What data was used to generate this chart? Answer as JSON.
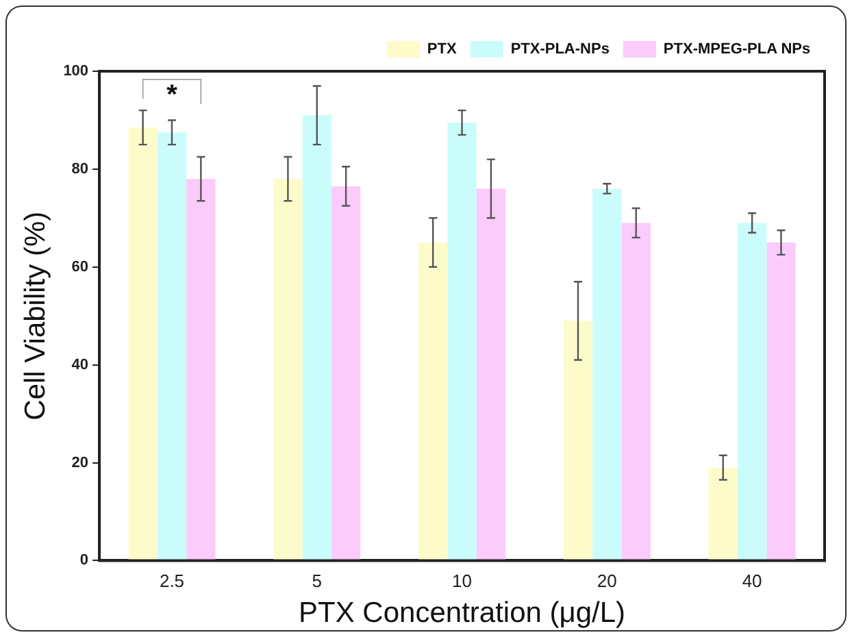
{
  "chart_data": {
    "type": "bar",
    "xlabel": "PTX Concentration (μg/L)",
    "ylabel": "Cell Viability (%)",
    "categories": [
      "2.5",
      "5",
      "10",
      "20",
      "40"
    ],
    "series": [
      {
        "name": "PTX",
        "color": "#fefbcb",
        "values": [
          88.5,
          78,
          65,
          49,
          19
        ],
        "errors": [
          3.5,
          4.5,
          5,
          8,
          2.5
        ]
      },
      {
        "name": "PTX-PLA-NPs",
        "color": "#cbfcfc",
        "values": [
          87.5,
          91,
          89.5,
          76,
          69
        ],
        "errors": [
          2.5,
          6,
          2.5,
          1,
          2
        ]
      },
      {
        "name": "PTX-MPEG-PLA NPs",
        "color": "#fbcbfb",
        "values": [
          78,
          76.5,
          76,
          69,
          65
        ],
        "errors": [
          4.5,
          4,
          6,
          3,
          2.5
        ]
      }
    ],
    "ylim": [
      0,
      100
    ],
    "yticks": [
      0,
      20,
      40,
      60,
      80,
      100
    ],
    "grid": false,
    "legend": "top right",
    "annotations": [
      "*"
    ]
  }
}
